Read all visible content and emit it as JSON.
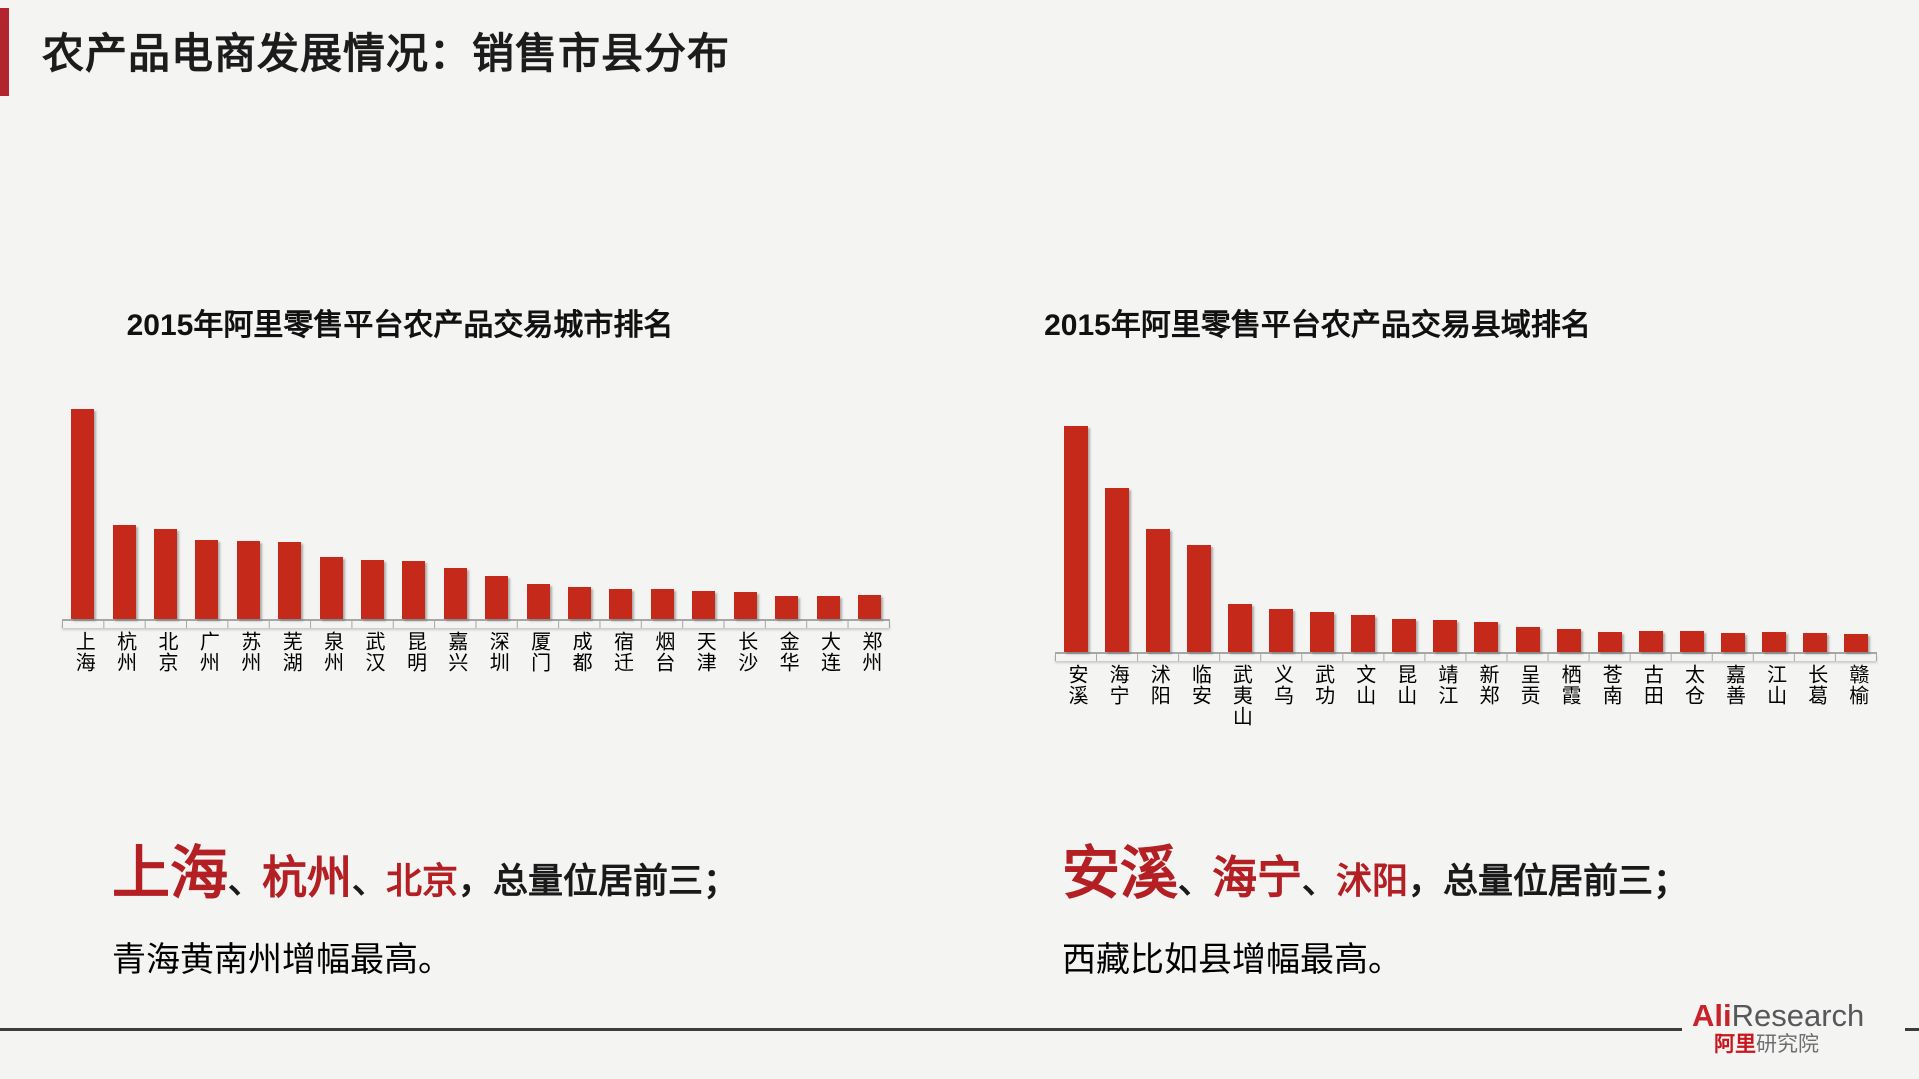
{
  "page": {
    "background": "#f4f4f3",
    "accent_color": "#b2242e",
    "bar_color": "#c5291a",
    "emphasis_color": "#b41f24"
  },
  "header": {
    "title": "农产品电商发展情况：销售市县分布"
  },
  "chart_data": [
    {
      "type": "bar",
      "title": "2015年阿里零售平台农产品交易城市排名",
      "categories": [
        "上海",
        "杭州",
        "北京",
        "广州",
        "苏州",
        "芜湖",
        "泉州",
        "武汉",
        "昆明",
        "嘉兴",
        "深圳",
        "厦门",
        "成都",
        "宿迁",
        "烟台",
        "天津",
        "长沙",
        "金华",
        "大连",
        "郑州"
      ],
      "values": [
        100,
        44.8,
        42.9,
        37.6,
        37.1,
        36.7,
        29.5,
        28.1,
        27.6,
        24.3,
        20.5,
        16.7,
        15.2,
        14.3,
        14.1,
        13.3,
        12.9,
        11.0,
        11.0,
        11.2
      ],
      "xlabel": "",
      "ylabel": "",
      "ylim": [
        0,
        100
      ],
      "value_unit": "relative index, top city = 100 (no y-axis shown)",
      "grid": false,
      "legend": false,
      "bar_color": "#c5291a"
    },
    {
      "type": "bar",
      "title": "2015年阿里零售平台农产品交易县域排名",
      "categories": [
        "安溪",
        "海宁",
        "沭阳",
        "临安",
        "武夷山",
        "义乌",
        "武功",
        "文山",
        "昆山",
        "靖江",
        "新郑",
        "呈贡",
        "栖霞",
        "苍南",
        "古田",
        "太仓",
        "嘉善",
        "江山",
        "长葛",
        "赣榆"
      ],
      "values": [
        100,
        72.6,
        54.4,
        47.3,
        21.2,
        19.0,
        17.9,
        16.4,
        14.6,
        14.0,
        13.3,
        11.1,
        10.2,
        8.8,
        9.3,
        9.3,
        8.4,
        8.8,
        8.4,
        8.0
      ],
      "xlabel": "",
      "ylabel": "",
      "ylim": [
        0,
        100
      ],
      "value_unit": "relative index, top county = 100 (no y-axis shown)",
      "grid": false,
      "legend": false,
      "bar_color": "#c5291a"
    }
  ],
  "callouts": [
    {
      "top1": "上海",
      "sep1": "、",
      "top2": "杭州",
      "sep2": "、",
      "top3": "北京",
      "rest": "，总量位居前三；",
      "line2": "青海黄南州增幅最高。"
    },
    {
      "top1": "安溪",
      "sep1": "、",
      "top2": "海宁",
      "sep2": "、",
      "top3": "沭阳",
      "rest": "，总量位居前三；",
      "line2": "西藏比如县增幅最高。"
    }
  ],
  "footer": {
    "brand_en_red": "Ali",
    "brand_en_gray": "Research",
    "brand_cn_red": "阿里",
    "brand_cn_gray": "研究院"
  }
}
